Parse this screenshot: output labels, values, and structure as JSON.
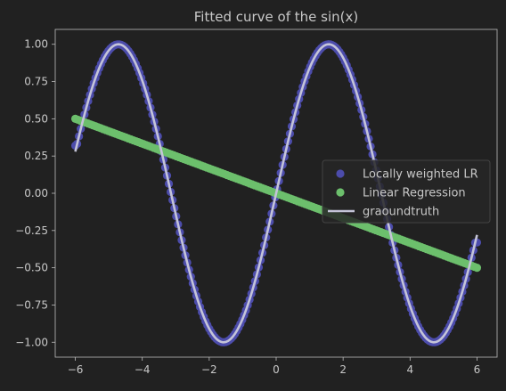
{
  "chart_data": {
    "type": "scatter",
    "title": "Fitted curve of the sin(x)",
    "xlabel": "",
    "ylabel": "",
    "xlim": [
      -6.6,
      6.6
    ],
    "ylim": [
      -1.1,
      1.1
    ],
    "x_ticks": [
      -6,
      -4,
      -2,
      0,
      2,
      4,
      6
    ],
    "y_ticks": [
      -1.0,
      -0.75,
      -0.5,
      -0.25,
      0.0,
      0.25,
      0.5,
      0.75,
      1.0
    ],
    "x_tick_labels": [
      "−6",
      "−4",
      "−2",
      "0",
      "2",
      "4",
      "6"
    ],
    "y_tick_labels": [
      "−1.00",
      "−0.75",
      "−0.50",
      "−0.25",
      "0.00",
      "0.25",
      "0.50",
      "0.75",
      "1.00"
    ],
    "grid": false,
    "legend_position": "center-right",
    "series": [
      {
        "name": "Locally weighted LR",
        "kind": "scatter",
        "color": "#4c4cab",
        "function": "sin(x)",
        "x_range": [
          -6,
          6
        ],
        "endpoints": [
          [
            -6,
            0.32
          ],
          [
            6,
            -0.33
          ]
        ]
      },
      {
        "name": "Linear Regression",
        "kind": "scatter",
        "color": "#6cbf6c",
        "x_range": [
          -6,
          6
        ],
        "endpoints": [
          [
            -6,
            0.5
          ],
          [
            6,
            -0.5
          ]
        ]
      },
      {
        "name": "graoundtruth",
        "kind": "line",
        "color": "#c4c4d8",
        "function": "sin(x)",
        "x_range": [
          -6,
          6
        ]
      }
    ],
    "colors": {
      "background": "#212121",
      "text": "#c8c8c8",
      "axes": "#bdbdbd",
      "legend_bg": "#262626",
      "legend_border": "#444444"
    }
  }
}
